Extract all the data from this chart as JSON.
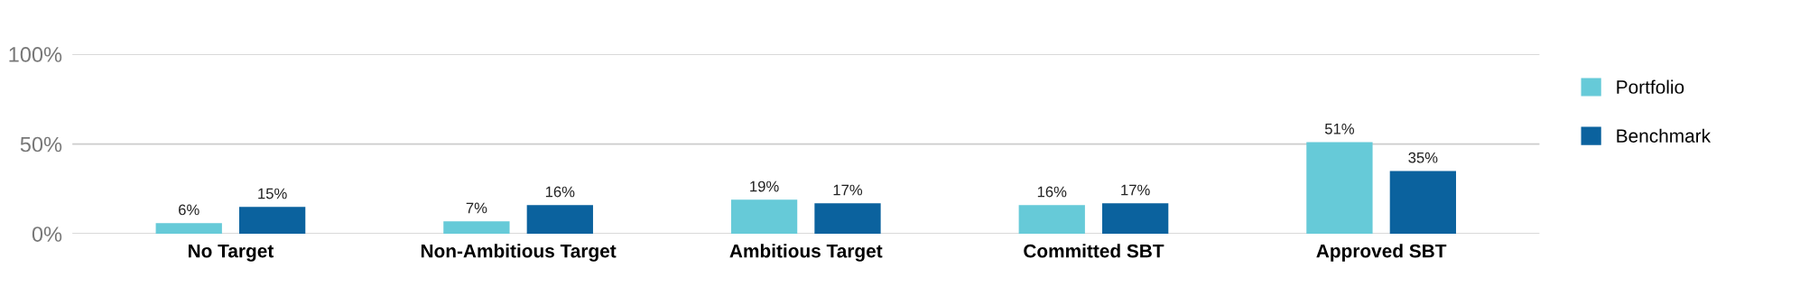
{
  "chart_data": {
    "type": "bar",
    "categories": [
      "No Target",
      "Non-Ambitious Target",
      "Ambitious Target",
      "Committed SBT",
      "Approved SBT"
    ],
    "series": [
      {
        "name": "Portfolio",
        "color": "#66cad8",
        "values": [
          6,
          7,
          19,
          16,
          51
        ],
        "value_labels": [
          "6%",
          "7%",
          "19%",
          "16%",
          "51%"
        ]
      },
      {
        "name": "Benchmark",
        "color": "#0b629e",
        "values": [
          15,
          16,
          17,
          17,
          35
        ],
        "value_labels": [
          "15%",
          "16%",
          "17%",
          "17%",
          "35%"
        ]
      }
    ],
    "ylim": [
      0,
      100
    ],
    "yticks": [
      {
        "value": 0,
        "label": "0%"
      },
      {
        "value": 50,
        "label": "50%"
      },
      {
        "value": 100,
        "label": "100%"
      }
    ],
    "grid": "y",
    "legend": "right"
  }
}
